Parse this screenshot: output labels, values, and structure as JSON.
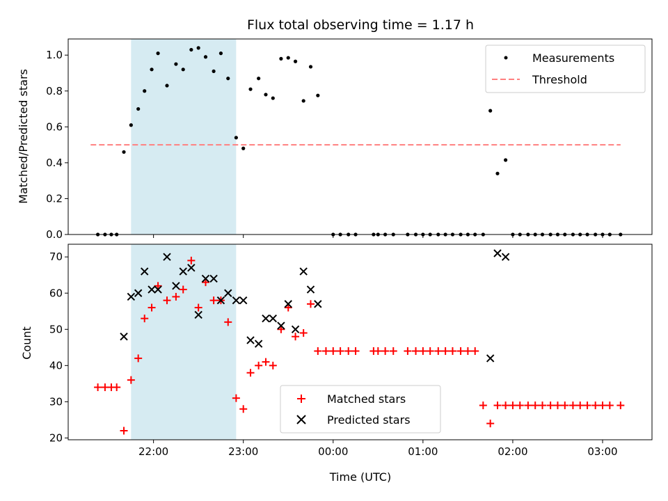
{
  "chart_data": [
    {
      "type": "scatter",
      "title": "Flux total observing time = 1.17 h",
      "xlabel": "",
      "ylabel": "Matched/Predicted stars",
      "ylim": [
        0,
        1.09
      ],
      "yticks": [
        0.0,
        0.2,
        0.4,
        0.6,
        0.8,
        1.0
      ],
      "ytick_labels": [
        "0.0",
        "0.2",
        "0.4",
        "0.6",
        "0.8",
        "1.0"
      ],
      "xlim": [
        21.05,
        27.55
      ],
      "xticks": [
        22,
        23,
        24,
        25,
        26,
        27
      ],
      "legend_position": "top-right",
      "shaded_span": [
        21.75,
        22.92
      ],
      "shaded_color": "#add8e6",
      "series": [
        {
          "name": "Measurements",
          "marker": "dot",
          "color": "#000000",
          "x": [
            21.38,
            21.46,
            21.53,
            21.59,
            21.67,
            21.75,
            21.83,
            21.9,
            21.98,
            22.05,
            22.15,
            22.25,
            22.33,
            22.42,
            22.5,
            22.58,
            22.67,
            22.75,
            22.83,
            22.92,
            23.0,
            23.08,
            23.17,
            23.25,
            23.33,
            23.42,
            23.5,
            23.58,
            23.67,
            23.75,
            23.83,
            24.0,
            24.08,
            24.17,
            24.25,
            24.45,
            24.5,
            24.58,
            24.67,
            24.83,
            24.92,
            25.0,
            25.08,
            25.17,
            25.25,
            25.33,
            25.42,
            25.5,
            25.58,
            25.67,
            25.75,
            25.83,
            25.92,
            26.0,
            26.08,
            26.17,
            26.25,
            26.33,
            26.42,
            26.5,
            26.58,
            26.67,
            26.75,
            26.83,
            26.92,
            27.0,
            27.08,
            27.2
          ],
          "y": [
            0,
            0,
            0,
            0,
            0.46,
            0.61,
            0.7,
            0.8,
            0.92,
            1.01,
            0.83,
            0.95,
            0.92,
            1.03,
            1.04,
            0.99,
            0.91,
            1.01,
            0.87,
            0.54,
            0.48,
            0.81,
            0.87,
            0.78,
            0.76,
            0.98,
            0.985,
            0.965,
            0.745,
            0.935,
            0.775,
            0,
            0,
            0,
            0,
            0,
            0,
            0,
            0,
            0,
            0,
            0,
            0,
            0,
            0,
            0,
            0,
            0,
            0,
            0,
            0.69,
            0.34,
            0.415,
            0,
            0,
            0,
            0,
            0,
            0,
            0,
            0,
            0,
            0,
            0,
            0,
            0,
            0,
            0
          ]
        },
        {
          "name": "Threshold",
          "style": "dashed",
          "color": "#ff7f7f",
          "x": [
            21.3,
            27.2
          ],
          "y": [
            0.5,
            0.5
          ]
        }
      ]
    },
    {
      "type": "scatter",
      "title": "",
      "xlabel": "Time (UTC)",
      "ylabel": "Count",
      "ylim": [
        19.5,
        73.5
      ],
      "yticks": [
        20,
        30,
        40,
        50,
        60,
        70
      ],
      "ytick_labels": [
        "20",
        "30",
        "40",
        "50",
        "60",
        "70"
      ],
      "xlim": [
        21.05,
        27.55
      ],
      "xticks": [
        22,
        23,
        24,
        25,
        26,
        27
      ],
      "xtick_labels": [
        "22:00",
        "23:00",
        "00:00",
        "01:00",
        "02:00",
        "03:00"
      ],
      "legend_position": "lower-center",
      "shaded_span": [
        21.75,
        22.92
      ],
      "shaded_color": "#add8e6",
      "series": [
        {
          "name": "Matched stars",
          "marker": "plus",
          "color": "#ff0000",
          "x": [
            21.38,
            21.46,
            21.53,
            21.59,
            21.67,
            21.75,
            21.83,
            21.9,
            21.98,
            22.05,
            22.15,
            22.25,
            22.33,
            22.42,
            22.5,
            22.58,
            22.67,
            22.75,
            22.83,
            22.92,
            23.0,
            23.08,
            23.17,
            23.25,
            23.33,
            23.42,
            23.5,
            23.58,
            23.67,
            23.75,
            23.83,
            23.92,
            24.0,
            24.08,
            24.17,
            24.25,
            24.45,
            24.5,
            24.58,
            24.67,
            24.83,
            24.92,
            25.0,
            25.08,
            25.17,
            25.25,
            25.33,
            25.42,
            25.5,
            25.58,
            25.67,
            25.75,
            25.83,
            25.92,
            26.0,
            26.08,
            26.17,
            26.25,
            26.33,
            26.42,
            26.5,
            26.58,
            26.67,
            26.75,
            26.83,
            26.92,
            27.0,
            27.08,
            27.2
          ],
          "y": [
            34,
            34,
            34,
            34,
            22,
            36,
            42,
            53,
            56,
            62,
            58,
            59,
            61,
            69,
            56,
            63,
            58,
            58,
            52,
            31,
            28,
            38,
            40,
            41,
            40,
            50,
            56,
            48,
            49,
            57,
            44,
            44,
            44,
            44,
            44,
            44,
            44,
            44,
            44,
            44,
            44,
            44,
            44,
            44,
            44,
            44,
            44,
            44,
            44,
            44,
            29,
            24,
            29,
            29,
            29,
            29,
            29,
            29,
            29,
            29,
            29,
            29,
            29,
            29,
            29,
            29,
            29,
            29,
            29
          ]
        },
        {
          "name": "Predicted stars",
          "marker": "x",
          "color": "#000000",
          "x": [
            21.67,
            21.75,
            21.83,
            21.9,
            21.98,
            22.05,
            22.15,
            22.25,
            22.33,
            22.42,
            22.5,
            22.58,
            22.67,
            22.75,
            22.83,
            22.92,
            23.0,
            23.08,
            23.17,
            23.25,
            23.33,
            23.42,
            23.5,
            23.58,
            23.67,
            23.75,
            23.83,
            25.75,
            25.83,
            25.92
          ],
          "y": [
            48,
            59,
            60,
            66,
            61,
            61,
            70,
            62,
            66,
            67,
            54,
            64,
            64,
            58,
            60,
            58,
            58,
            47,
            46,
            53,
            53,
            51,
            57,
            50,
            66,
            61,
            57,
            42,
            71,
            70
          ]
        }
      ]
    }
  ]
}
